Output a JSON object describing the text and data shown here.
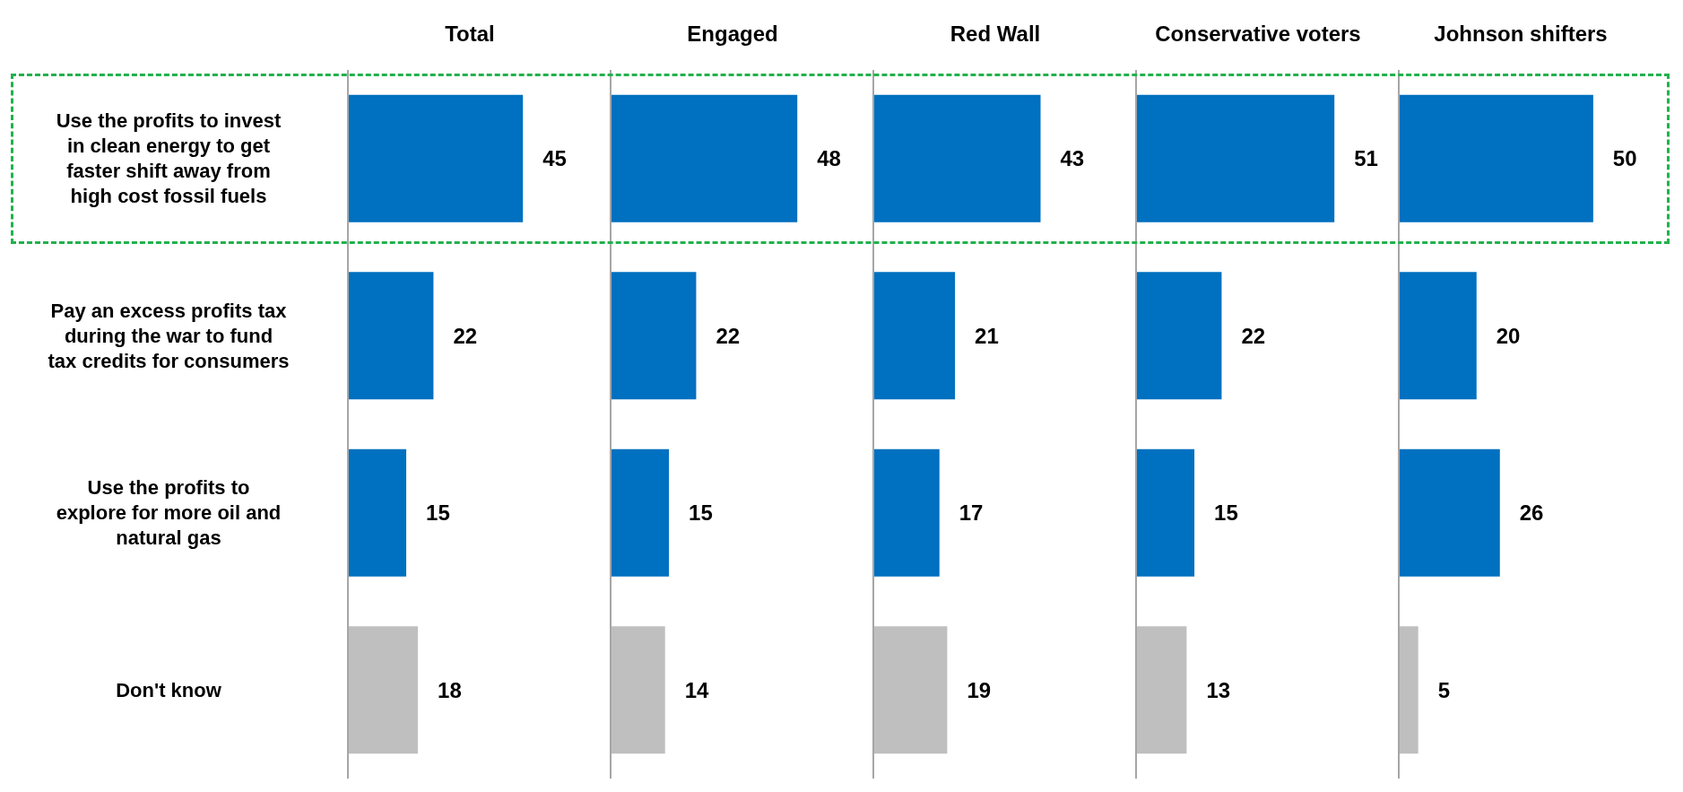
{
  "chart_data": [
    {
      "type": "bar",
      "orientation": "horizontal",
      "title": "Total",
      "categories": [
        "Use the profits to invest in clean energy to get faster shift away from high cost fossil fuels",
        "Pay an excess profits tax during the war to fund tax credits for consumers",
        "Use the profits to explore for more oil and natural gas",
        "Don't know"
      ],
      "values": [
        45,
        22,
        15,
        18
      ],
      "colors": [
        "#0070c0",
        "#0070c0",
        "#0070c0",
        "#bfbfbf"
      ],
      "data_labels": true,
      "tick_labels": "y"
    },
    {
      "type": "bar",
      "orientation": "horizontal",
      "title": "Engaged",
      "categories": [
        null,
        null,
        null,
        null
      ],
      "values": [
        48,
        22,
        15,
        14
      ],
      "colors": [
        "#0070c0",
        "#0070c0",
        "#0070c0",
        "#bfbfbf"
      ],
      "data_labels": true,
      "tick_labels": false
    },
    {
      "type": "bar",
      "orientation": "horizontal",
      "title": "Red Wall",
      "categories": [
        null,
        null,
        null,
        null
      ],
      "values": [
        43,
        21,
        17,
        19
      ],
      "colors": [
        "#0070c0",
        "#0070c0",
        "#0070c0",
        "#bfbfbf"
      ],
      "data_labels": true,
      "tick_labels": false
    },
    {
      "type": "bar",
      "orientation": "horizontal",
      "title": "Conservative voters",
      "categories": [
        null,
        null,
        null,
        null
      ],
      "values": [
        51,
        22,
        15,
        13
      ],
      "colors": [
        "#0070c0",
        "#0070c0",
        "#0070c0",
        "#bfbfbf"
      ],
      "data_labels": true,
      "tick_labels": false
    },
    {
      "type": "bar",
      "orientation": "horizontal",
      "title": "Johnson shifters",
      "categories": [
        null,
        null,
        null,
        null
      ],
      "values": [
        50,
        20,
        26,
        5
      ],
      "colors": [
        "#0070c0",
        "#0070c0",
        "#0070c0",
        "#bfbfbf"
      ],
      "data_labels": true,
      "tick_labels": false
    }
  ]
}
